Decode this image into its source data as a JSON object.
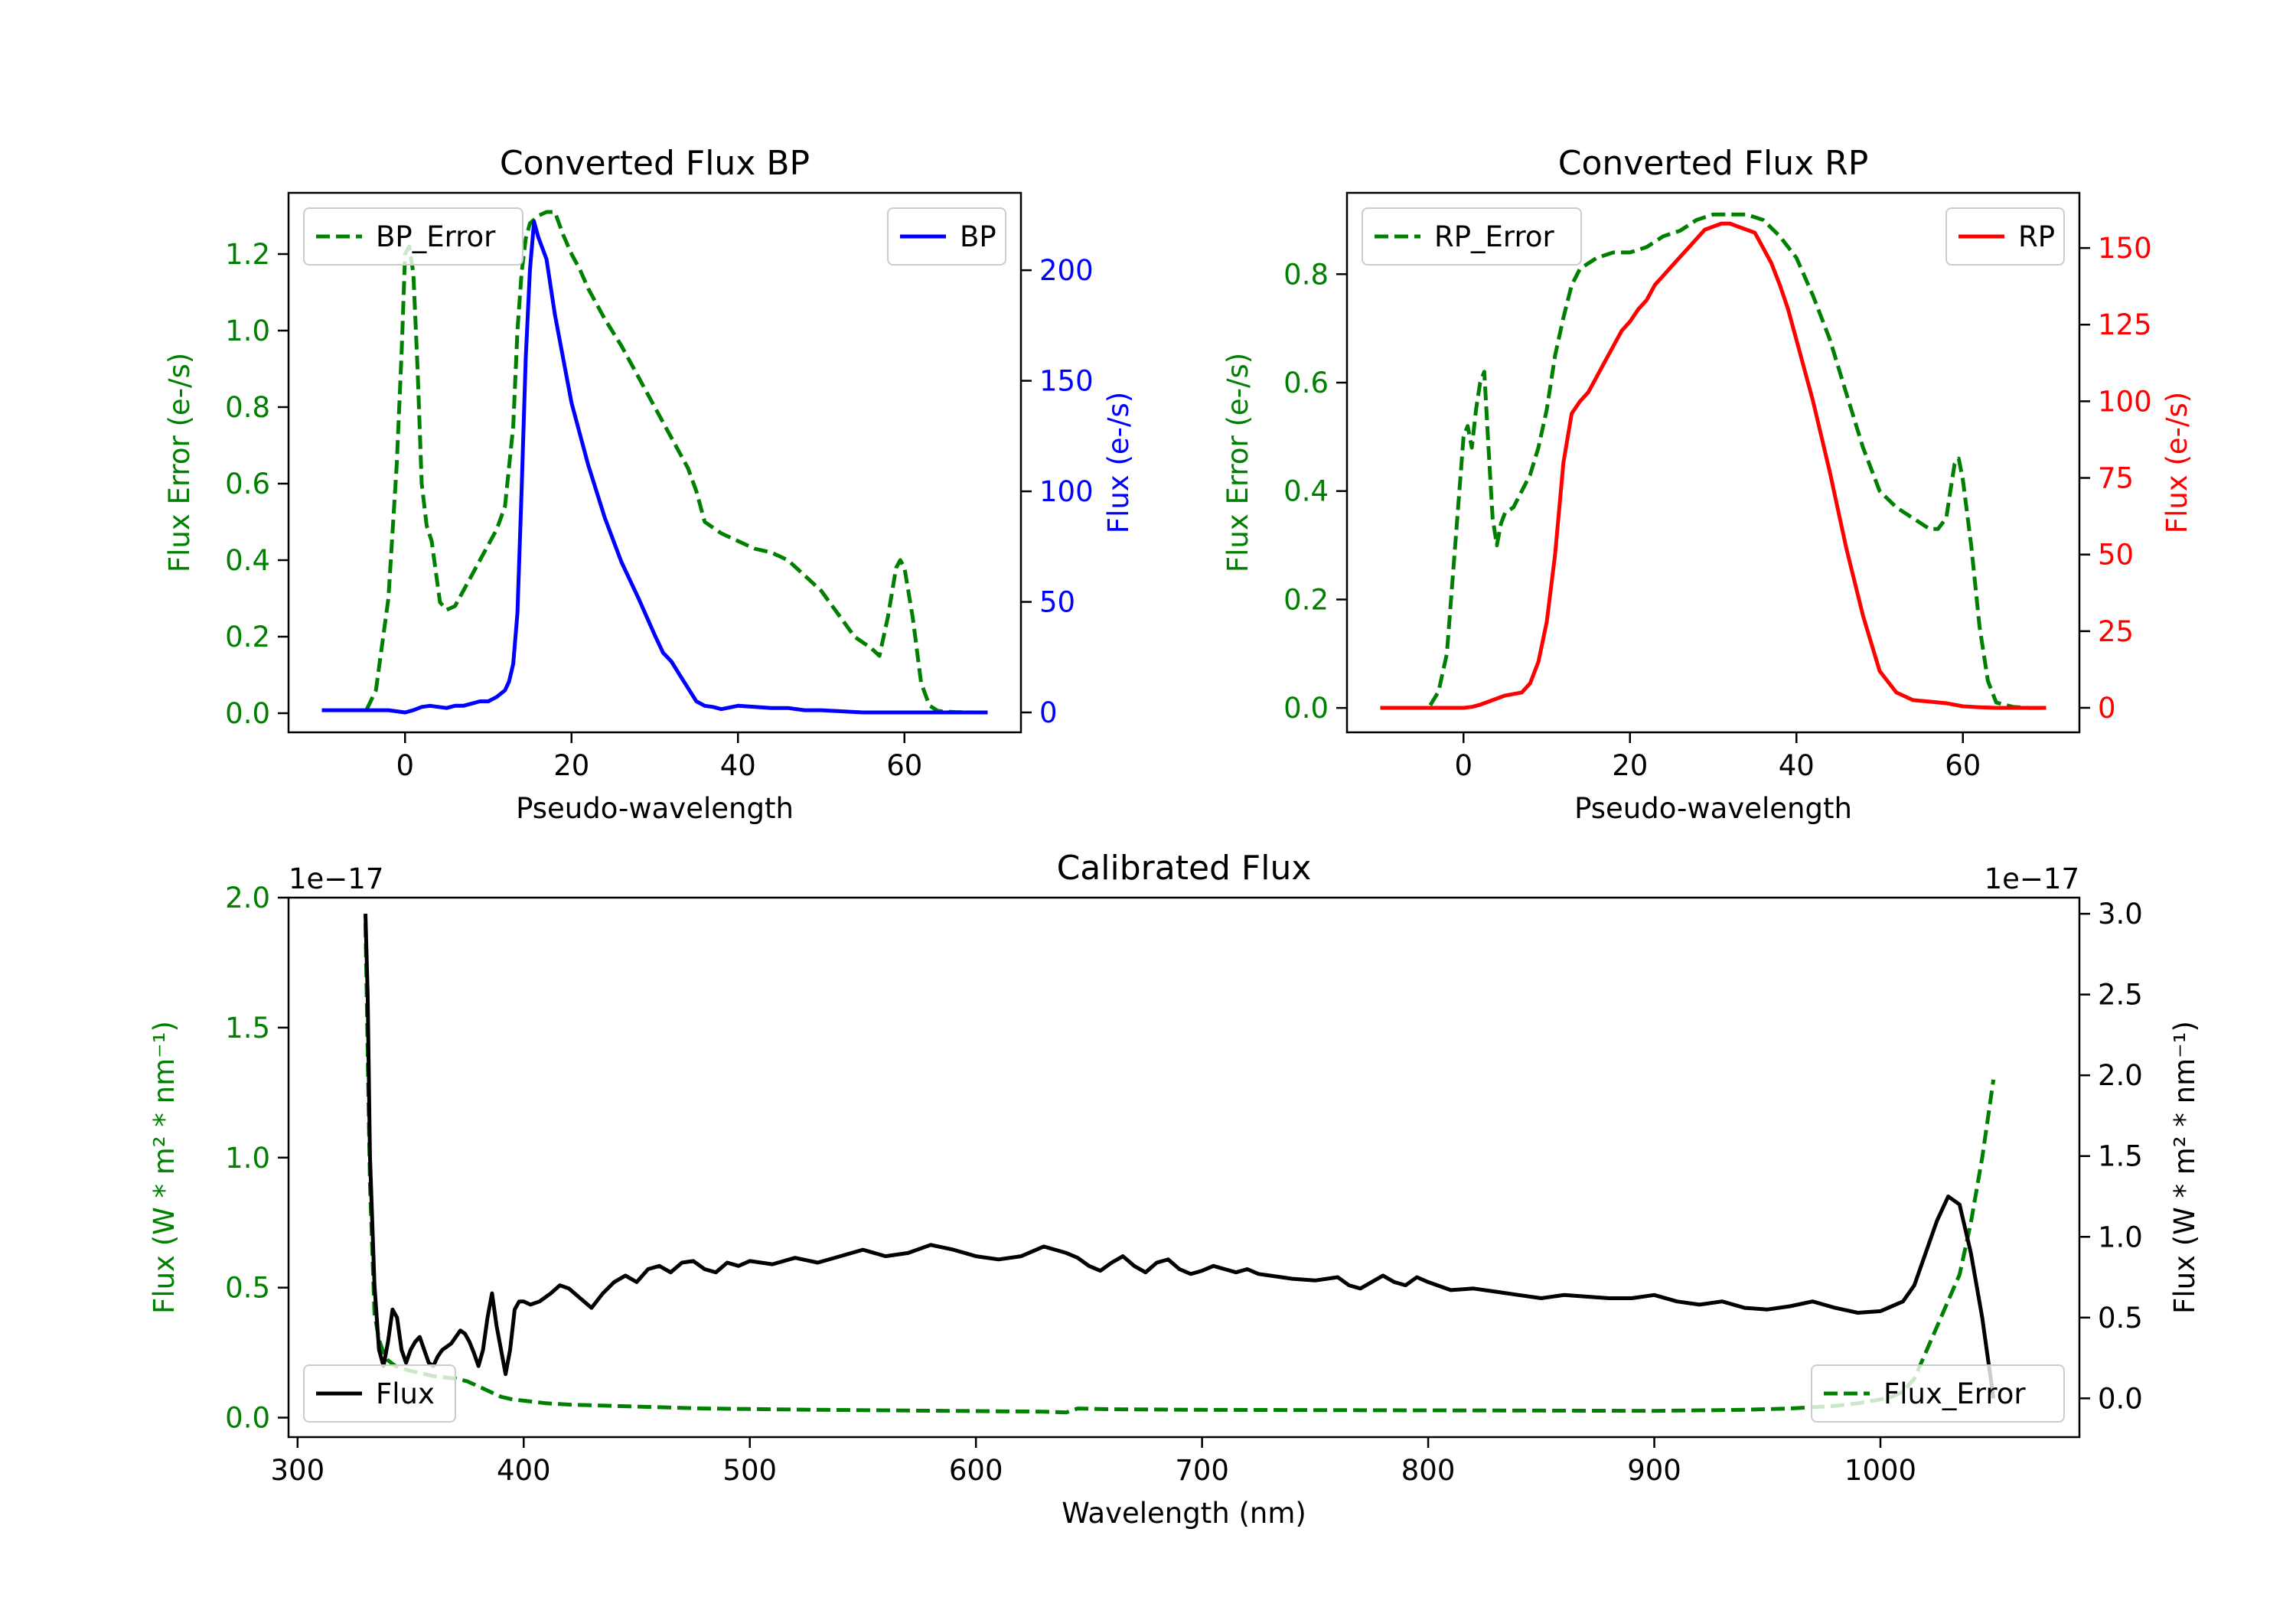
{
  "colors": {
    "green": "#008000",
    "blue": "#0000ff",
    "red": "#ff0000",
    "black": "#000000"
  },
  "chart_data": [
    {
      "id": "bp",
      "type": "line",
      "title": "Converted Flux BP",
      "xlabel": "Pseudo-wavelength",
      "ylabel_left": "Flux Error (e-/s)",
      "ylabel_right": "Flux (e-/s)",
      "xlim": [
        -14,
        74
      ],
      "ylim_left": [
        -0.05,
        1.36
      ],
      "ylim_right": [
        -9,
        235
      ],
      "xticks": [
        0,
        20,
        40,
        60
      ],
      "yticks_left": [
        0.0,
        0.2,
        0.4,
        0.6,
        0.8,
        1.0,
        1.2
      ],
      "yticks_right": [
        0,
        50,
        100,
        150,
        200
      ],
      "series": [
        {
          "name": "BP_Error",
          "axis": "left",
          "color": "green",
          "dashed": true,
          "x": [
            -4.6,
            -3.5,
            -2,
            -1,
            -0.4,
            0,
            0.5,
            1,
            1.5,
            2,
            2.6,
            3.2,
            4.2,
            5,
            6,
            7,
            8,
            9,
            10,
            11,
            12,
            13,
            13.5,
            14,
            14.5,
            15,
            16,
            17,
            18,
            19,
            20,
            21,
            22,
            24,
            26,
            28,
            30,
            32,
            34,
            35,
            36,
            38,
            40,
            42,
            44,
            46,
            48,
            50,
            52,
            54,
            56,
            57,
            58,
            59,
            59.5,
            60,
            61,
            62,
            62.5,
            63,
            64,
            65,
            66,
            68,
            70
          ],
          "y": [
            0.01,
            0.06,
            0.3,
            0.65,
            0.95,
            1.2,
            1.22,
            1.15,
            0.9,
            0.6,
            0.49,
            0.45,
            0.29,
            0.27,
            0.28,
            0.32,
            0.36,
            0.4,
            0.44,
            0.48,
            0.54,
            0.75,
            1.0,
            1.15,
            1.24,
            1.28,
            1.3,
            1.31,
            1.31,
            1.25,
            1.2,
            1.16,
            1.11,
            1.03,
            0.96,
            0.88,
            0.8,
            0.72,
            0.64,
            0.58,
            0.5,
            0.47,
            0.45,
            0.43,
            0.42,
            0.4,
            0.36,
            0.32,
            0.26,
            0.2,
            0.17,
            0.15,
            0.25,
            0.38,
            0.4,
            0.38,
            0.25,
            0.08,
            0.05,
            0.02,
            0.006,
            0.004,
            0.003,
            0.002,
            0.002
          ]
        },
        {
          "name": "BP",
          "axis": "right",
          "color": "blue",
          "dashed": false,
          "x": [
            -10,
            -6,
            -4,
            -2,
            0,
            1,
            2,
            3,
            4,
            5,
            6,
            7,
            8,
            9,
            10,
            11,
            12,
            12.5,
            13,
            13.5,
            14,
            14.5,
            15,
            15.5,
            16,
            16.5,
            17,
            18,
            19,
            20,
            22,
            24,
            26,
            28,
            30,
            31,
            32,
            33,
            34,
            35,
            36,
            37,
            38,
            40,
            44,
            46,
            48,
            50,
            55,
            58,
            60,
            62,
            64,
            66,
            68,
            70
          ],
          "y": [
            1,
            1,
            1,
            1,
            0,
            1,
            2.5,
            3,
            2.5,
            2,
            3,
            3,
            4,
            5,
            5,
            7,
            10,
            14,
            22,
            45,
            100,
            160,
            200,
            222,
            215,
            210,
            205,
            180,
            160,
            140,
            112,
            88,
            68,
            52,
            35,
            27,
            23,
            17,
            11,
            5,
            3,
            2.5,
            1.5,
            3,
            2,
            2,
            1,
            1,
            0,
            0,
            0,
            0,
            0,
            0,
            0,
            0
          ]
        }
      ],
      "legend": [
        {
          "label": "BP_Error",
          "position": "upper-left"
        },
        {
          "label": "BP",
          "position": "upper-right"
        }
      ]
    },
    {
      "id": "rp",
      "type": "line",
      "title": "Converted Flux RP",
      "xlabel": "Pseudo-wavelength",
      "ylabel_left": "Flux Error (e-/s)",
      "ylabel_right": "Flux (e-/s)",
      "xlim": [
        -14,
        74
      ],
      "ylim_left": [
        -0.045,
        0.95
      ],
      "ylim_right": [
        -8,
        168
      ],
      "xticks": [
        0,
        20,
        40,
        60
      ],
      "yticks_left": [
        0.0,
        0.2,
        0.4,
        0.6,
        0.8
      ],
      "yticks_right": [
        0,
        25,
        50,
        75,
        100,
        125,
        150
      ],
      "series": [
        {
          "name": "RP_Error",
          "axis": "left",
          "color": "green",
          "dashed": true,
          "x": [
            -4,
            -3,
            -2,
            -1,
            0,
            0.5,
            1,
            1.5,
            2,
            2.5,
            3,
            3.5,
            4,
            4.5,
            5,
            6,
            7,
            8,
            9,
            10,
            11,
            12,
            13,
            14,
            15,
            16,
            18,
            20,
            22,
            24,
            26,
            28,
            30,
            32,
            34,
            36,
            38,
            40,
            42,
            44,
            46,
            48,
            50,
            52,
            54,
            55,
            56,
            57,
            58,
            58.5,
            59,
            59.5,
            60,
            61,
            62,
            63,
            64,
            66,
            68,
            70
          ],
          "y": [
            0.005,
            0.03,
            0.1,
            0.3,
            0.5,
            0.52,
            0.48,
            0.55,
            0.6,
            0.62,
            0.48,
            0.35,
            0.3,
            0.34,
            0.36,
            0.37,
            0.4,
            0.43,
            0.48,
            0.55,
            0.65,
            0.72,
            0.78,
            0.81,
            0.82,
            0.83,
            0.84,
            0.84,
            0.85,
            0.87,
            0.88,
            0.9,
            0.91,
            0.91,
            0.91,
            0.9,
            0.87,
            0.83,
            0.76,
            0.68,
            0.58,
            0.48,
            0.4,
            0.37,
            0.35,
            0.34,
            0.33,
            0.33,
            0.35,
            0.4,
            0.45,
            0.46,
            0.42,
            0.3,
            0.15,
            0.05,
            0.01,
            0.002,
            0,
            0
          ]
        },
        {
          "name": "RP",
          "axis": "right",
          "color": "red",
          "dashed": false,
          "x": [
            -10,
            -5,
            -2,
            0,
            1,
            2,
            3,
            4,
            5,
            6,
            7,
            8,
            9,
            10,
            11,
            12,
            13,
            14,
            15,
            16,
            17,
            18,
            19,
            20,
            21,
            22,
            23,
            24,
            25,
            26,
            27,
            28,
            29,
            30,
            31,
            32,
            33,
            34,
            35,
            36,
            37,
            38,
            39,
            40,
            42,
            44,
            46,
            48,
            50,
            52,
            54,
            56,
            58,
            60,
            62,
            64,
            66,
            70
          ],
          "y": [
            0,
            0,
            0,
            0,
            0.3,
            1,
            2,
            3,
            4,
            4.5,
            5,
            8,
            15,
            28,
            50,
            80,
            96,
            100,
            103,
            108,
            113,
            118,
            123,
            126,
            130,
            133,
            138,
            141,
            144,
            147,
            150,
            153,
            156,
            157,
            158,
            158,
            157,
            156,
            155,
            150,
            145,
            138,
            130,
            120,
            100,
            77,
            52,
            30,
            12,
            5,
            2.5,
            2,
            1.5,
            0.5,
            0.2,
            0,
            0,
            0
          ]
        }
      ],
      "legend": [
        {
          "label": "RP_Error",
          "position": "upper-left"
        },
        {
          "label": "RP",
          "position": "upper-right"
        }
      ]
    },
    {
      "id": "cal",
      "type": "line",
      "title": "Calibrated Flux",
      "xlabel": "Wavelength (nm)",
      "ylabel_left": "Flux (W * m² * nm⁻¹)",
      "ylabel_right": "Flux (W * m² * nm⁻¹)",
      "offset_left": "1e−17",
      "offset_right": "1e−17",
      "xlim": [
        296,
        1088
      ],
      "ylim_left": [
        -0.075,
        2.0
      ],
      "ylim_right": [
        -0.24,
        3.1
      ],
      "xticks": [
        300,
        400,
        500,
        600,
        700,
        800,
        900,
        1000
      ],
      "yticks_left": [
        0.0,
        0.5,
        1.0,
        1.5,
        2.0
      ],
      "yticks_right": [
        0.0,
        0.5,
        1.0,
        1.5,
        2.0,
        2.5,
        3.0
      ],
      "series": [
        {
          "name": "Flux_Error",
          "axis": "left",
          "color": "green",
          "dashed": true,
          "x": [
            330,
            332,
            334,
            336,
            338,
            340,
            343,
            346,
            350,
            355,
            360,
            365,
            370,
            375,
            380,
            385,
            390,
            395,
            400,
            405,
            410,
            420,
            440,
            460,
            480,
            500,
            530,
            560,
            600,
            630,
            640,
            645,
            660,
            700,
            750,
            800,
            850,
            900,
            940,
            960,
            980,
            990,
            1000,
            1005,
            1010,
            1015,
            1020,
            1025,
            1030,
            1035,
            1040,
            1045,
            1050
          ],
          "y": [
            1.9,
            0.9,
            0.4,
            0.3,
            0.25,
            0.22,
            0.2,
            0.19,
            0.18,
            0.17,
            0.16,
            0.155,
            0.15,
            0.14,
            0.12,
            0.1,
            0.08,
            0.07,
            0.065,
            0.06,
            0.055,
            0.05,
            0.045,
            0.04,
            0.035,
            0.033,
            0.03,
            0.028,
            0.025,
            0.023,
            0.02,
            0.035,
            0.032,
            0.03,
            0.029,
            0.028,
            0.027,
            0.026,
            0.03,
            0.035,
            0.045,
            0.055,
            0.07,
            0.08,
            0.1,
            0.15,
            0.25,
            0.35,
            0.45,
            0.55,
            0.75,
            1.0,
            1.3
          ]
        },
        {
          "name": "Flux",
          "axis": "right",
          "color": "black",
          "dashed": false,
          "x": [
            330,
            331,
            332,
            334,
            336,
            338,
            340,
            342,
            344,
            346,
            348,
            350,
            352,
            354,
            356,
            358,
            360,
            362,
            364,
            366,
            368,
            370,
            372,
            374,
            376,
            378,
            380,
            382,
            384,
            386,
            388,
            390,
            392,
            394,
            396,
            398,
            400,
            403,
            407,
            412,
            416,
            420,
            425,
            430,
            435,
            440,
            445,
            450,
            455,
            460,
            465,
            470,
            475,
            480,
            485,
            490,
            495,
            500,
            510,
            520,
            530,
            540,
            550,
            560,
            570,
            580,
            590,
            600,
            610,
            620,
            630,
            635,
            640,
            645,
            650,
            655,
            660,
            665,
            670,
            675,
            680,
            685,
            690,
            695,
            700,
            705,
            710,
            715,
            720,
            725,
            730,
            740,
            750,
            760,
            765,
            770,
            775,
            780,
            785,
            790,
            795,
            800,
            810,
            820,
            830,
            840,
            850,
            860,
            870,
            880,
            890,
            900,
            910,
            920,
            930,
            940,
            950,
            960,
            970,
            980,
            990,
            1000,
            1010,
            1015,
            1020,
            1025,
            1030,
            1035,
            1040,
            1045,
            1050
          ],
          "y": [
            3.0,
            2.5,
            1.5,
            0.7,
            0.3,
            0.2,
            0.35,
            0.55,
            0.5,
            0.3,
            0.22,
            0.3,
            0.35,
            0.38,
            0.3,
            0.22,
            0.2,
            0.26,
            0.3,
            0.32,
            0.34,
            0.38,
            0.42,
            0.4,
            0.35,
            0.28,
            0.2,
            0.3,
            0.5,
            0.65,
            0.45,
            0.3,
            0.15,
            0.3,
            0.55,
            0.6,
            0.6,
            0.58,
            0.6,
            0.65,
            0.7,
            0.68,
            0.62,
            0.56,
            0.65,
            0.72,
            0.76,
            0.72,
            0.8,
            0.82,
            0.78,
            0.84,
            0.85,
            0.8,
            0.78,
            0.84,
            0.82,
            0.85,
            0.83,
            0.87,
            0.84,
            0.88,
            0.92,
            0.88,
            0.9,
            0.95,
            0.92,
            0.88,
            0.86,
            0.88,
            0.94,
            0.92,
            0.9,
            0.87,
            0.82,
            0.79,
            0.84,
            0.88,
            0.82,
            0.78,
            0.84,
            0.86,
            0.8,
            0.77,
            0.79,
            0.82,
            0.8,
            0.78,
            0.8,
            0.77,
            0.76,
            0.74,
            0.73,
            0.75,
            0.7,
            0.68,
            0.72,
            0.76,
            0.72,
            0.7,
            0.75,
            0.72,
            0.67,
            0.68,
            0.66,
            0.64,
            0.62,
            0.64,
            0.63,
            0.62,
            0.62,
            0.64,
            0.6,
            0.58,
            0.6,
            0.56,
            0.55,
            0.57,
            0.6,
            0.56,
            0.53,
            0.54,
            0.6,
            0.7,
            0.9,
            1.1,
            1.25,
            1.2,
            0.9,
            0.5,
            0.0
          ]
        }
      ],
      "legend": [
        {
          "label": "Flux",
          "position": "lower-left"
        },
        {
          "label": "Flux_Error",
          "position": "lower-right"
        }
      ]
    }
  ]
}
